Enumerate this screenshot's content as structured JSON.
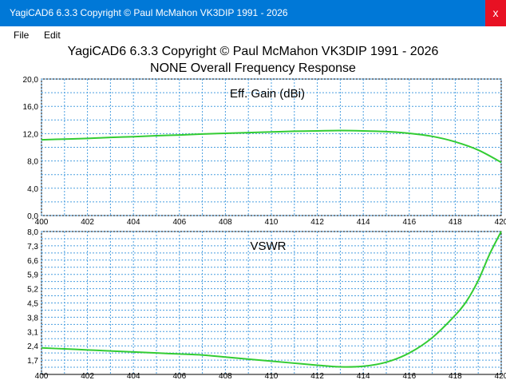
{
  "window": {
    "title": "YagiCAD6 6.3.3   Copyright © Paul McMahon VK3DIP 1991 - 2026",
    "close_glyph": "x"
  },
  "menu": {
    "items": [
      "File",
      "Edit"
    ]
  },
  "header": {
    "line1": "YagiCAD6 6.3.3   Copyright © Paul McMahon VK3DIP 1991 - 2026",
    "line2": "NONE Overall Frequency Response"
  },
  "colors": {
    "accent": "#0078d7",
    "close": "#e81123",
    "curve": "#33cc33",
    "grid": "#4a9fe0"
  },
  "chart_data": [
    {
      "type": "line",
      "title": "Eff. Gain (dBi)",
      "xlim": [
        400,
        420
      ],
      "ylim": [
        0,
        20
      ],
      "x_ticks": [
        "400",
        "402",
        "404",
        "406",
        "408",
        "410",
        "412",
        "414",
        "416",
        "418",
        "420"
      ],
      "y_ticks": [
        "0,0",
        "4,0",
        "8,0",
        "12,0",
        "16,0",
        "20,0"
      ],
      "grid": true,
      "series": [
        {
          "x": [
            400,
            401,
            402,
            403,
            404,
            405,
            406,
            407,
            408,
            409,
            410,
            411,
            412,
            413,
            414,
            415,
            416,
            417,
            418,
            419,
            420
          ],
          "values": [
            11.1,
            11.2,
            11.3,
            11.45,
            11.55,
            11.7,
            11.8,
            11.95,
            12.05,
            12.15,
            12.25,
            12.35,
            12.4,
            12.45,
            12.4,
            12.3,
            12.05,
            11.6,
            10.8,
            9.6,
            7.8
          ]
        }
      ]
    },
    {
      "type": "line",
      "title": "VSWR",
      "xlim": [
        400,
        420
      ],
      "ylim": [
        1.0,
        8.0
      ],
      "x_ticks": [
        "400",
        "402",
        "404",
        "406",
        "408",
        "410",
        "412",
        "414",
        "416",
        "418",
        "420"
      ],
      "y_ticks": [
        "1,7",
        "2,4",
        "3,1",
        "3,8",
        "4,5",
        "5,2",
        "5,9",
        "6,6",
        "7,3",
        "8,0"
      ],
      "grid": true,
      "series": [
        {
          "x": [
            400,
            401,
            402,
            403,
            404,
            405,
            406,
            407,
            408,
            409,
            410,
            411,
            412,
            413,
            414,
            415,
            416,
            417,
            418,
            418.5,
            419,
            419.5,
            420
          ],
          "values": [
            2.3,
            2.25,
            2.2,
            2.15,
            2.1,
            2.05,
            2.0,
            1.95,
            1.85,
            1.75,
            1.65,
            1.55,
            1.45,
            1.37,
            1.4,
            1.6,
            2.05,
            2.8,
            3.9,
            4.6,
            5.6,
            6.9,
            8.0
          ]
        }
      ]
    }
  ]
}
